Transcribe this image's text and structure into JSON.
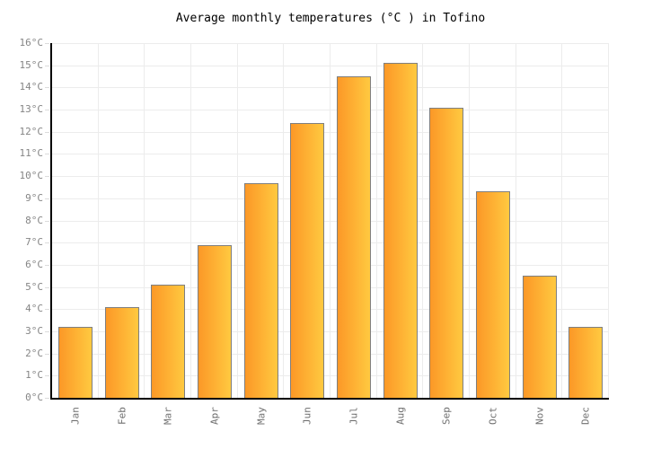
{
  "page_title": "Average monthly temperatures (°C ) in Tofino",
  "chart_data": {
    "type": "bar",
    "title": "Average monthly temperatures (°C ) in Tofino",
    "categories": [
      "Jan",
      "Feb",
      "Mar",
      "Apr",
      "May",
      "Jun",
      "Jul",
      "Aug",
      "Sep",
      "Oct",
      "Nov",
      "Dec"
    ],
    "values": [
      3.2,
      4.1,
      5.1,
      6.9,
      9.7,
      12.4,
      14.5,
      15.1,
      13.1,
      9.3,
      5.5,
      3.2
    ],
    "unit": "°C",
    "xlabel": "",
    "ylabel": "",
    "ylim": [
      0,
      16
    ],
    "ytick_step": 1,
    "yticks": [
      "0°C",
      "1°C",
      "2°C",
      "3°C",
      "4°C",
      "5°C",
      "6°C",
      "7°C",
      "8°C",
      "9°C",
      "10°C",
      "11°C",
      "12°C",
      "13°C",
      "14°C",
      "15°C",
      "16°C"
    ],
    "grid": true,
    "legend_position": "none",
    "styles": {
      "bar_gradient_left": "#FC9827",
      "bar_gradient_right": "#FFC940",
      "bar_border": "#7F7F7F",
      "axis_color": "#000000",
      "gridline_color": "#ECECEC",
      "minor_tick_color": "#DCDCDC",
      "y_label_color": "#858585",
      "x_label_color": "#707070",
      "title_color": "#000000",
      "background": "#FFFFFF"
    }
  }
}
